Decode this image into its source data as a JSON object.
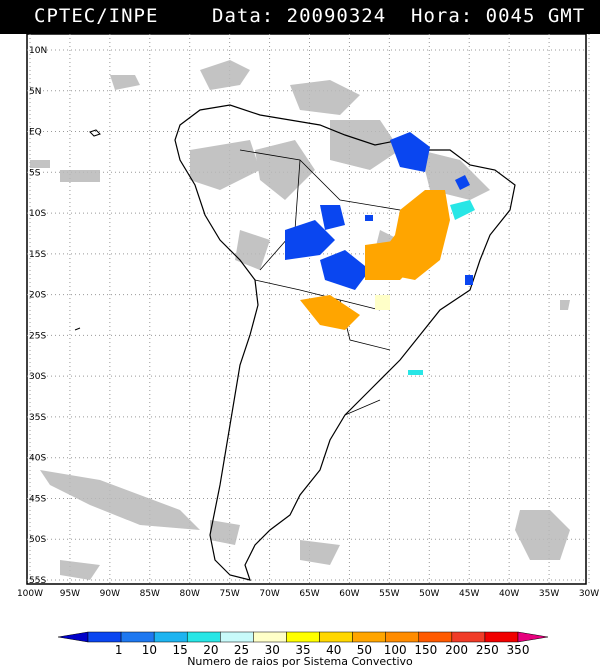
{
  "header": {
    "source": "CPTEC/INPE",
    "data_hora": "Data: 20090324  Hora: 0045 GMT"
  },
  "map": {
    "lat_labels": [
      "10N",
      "5N",
      "EQ",
      "5S",
      "10S",
      "15S",
      "20S",
      "25S",
      "30S",
      "35S",
      "40S",
      "45S",
      "50S",
      "55S"
    ],
    "lon_labels": [
      "100W",
      "95W",
      "90W",
      "85W",
      "80W",
      "75W",
      "70W",
      "65W",
      "60W",
      "55W",
      "50W",
      "45W",
      "40W",
      "35W",
      "30W"
    ],
    "lat_range": [
      10,
      -55
    ],
    "lon_range": [
      -100,
      -30
    ],
    "gridlines": true,
    "map_type": "lightning / convective systems over South America"
  },
  "colorbar": {
    "labels": [
      "1",
      "10",
      "15",
      "20",
      "25",
      "30",
      "35",
      "40",
      "50",
      "100",
      "150",
      "200",
      "250",
      "350"
    ],
    "colors": [
      "#0000c8",
      "#0a46f0",
      "#1e78f0",
      "#1eb4f0",
      "#28e6e6",
      "#c8fafa",
      "#ffffc8",
      "#ffff00",
      "#ffd700",
      "#ffa500",
      "#ff8c00",
      "#ff5a00",
      "#f03c28",
      "#f00000",
      "#e6007d"
    ],
    "caption": "Numero de raios por Sistema Convectivo"
  }
}
